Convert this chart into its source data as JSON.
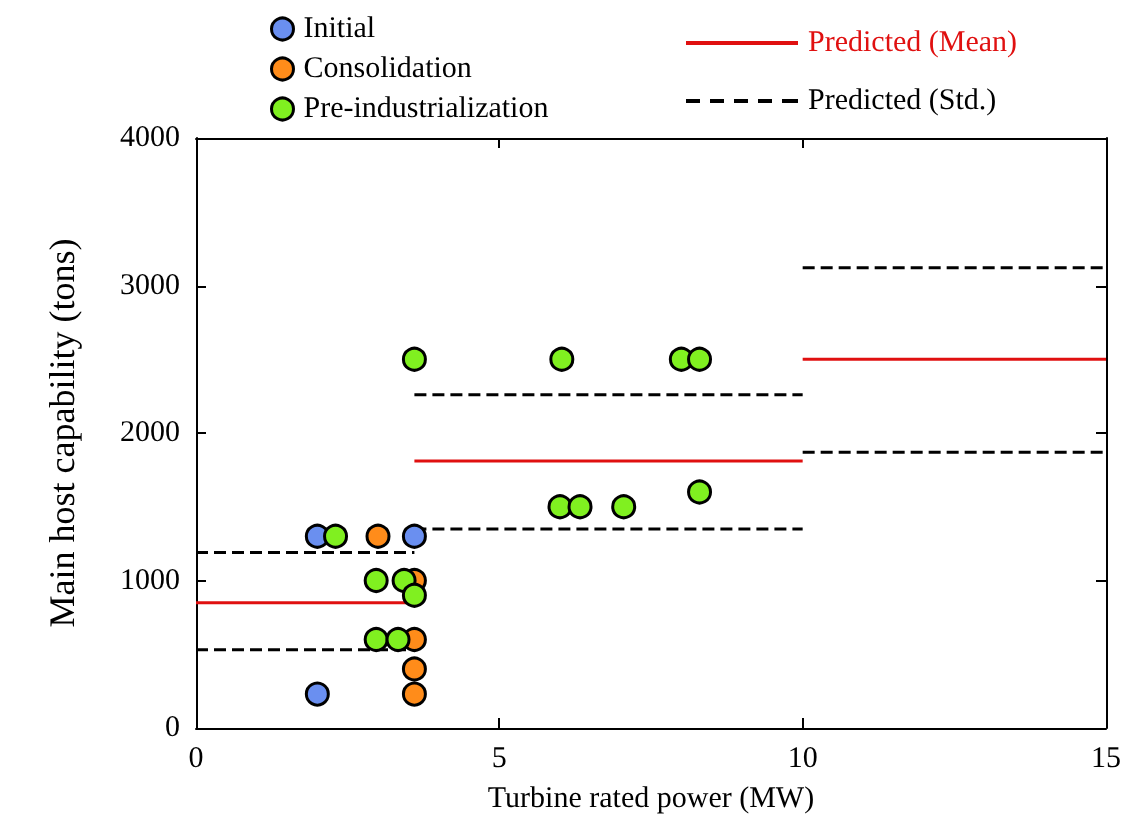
{
  "chart_data": {
    "type": "scatter",
    "xlabel": "Turbine rated power (MW)",
    "ylabel": "Main host capability (tons)",
    "xlim": [
      0,
      15
    ],
    "xticks": [
      0,
      5,
      10,
      15
    ],
    "ylim": [
      0,
      4000
    ],
    "yticks": [
      0,
      1000,
      2000,
      3000,
      4000
    ],
    "grid": false,
    "legend": "top",
    "marker": "circle",
    "series": [
      {
        "name": "Initial",
        "color": "#6a8ff0",
        "x": [
          2,
          2,
          3.6
        ],
        "values": [
          1300,
          230,
          1300
        ]
      },
      {
        "name": "Consolidation",
        "color": "#ff8c1a",
        "x": [
          3,
          3.6,
          3.6,
          3.6,
          3.6
        ],
        "values": [
          1300,
          1000,
          600,
          400,
          230
        ]
      },
      {
        "name": "Pre-industrialization",
        "color": "#80f020",
        "x": [
          2.3,
          2.97,
          3.43,
          2.97,
          3.33,
          3.6,
          3.6,
          6.03,
          8.0,
          8.3,
          6.0,
          6.33,
          7.05,
          8.3
        ],
        "values": [
          1300,
          1000,
          1000,
          600,
          600,
          900,
          2500,
          2500,
          2500,
          2500,
          1500,
          1500,
          1500,
          1600
        ]
      },
      {
        "name": "Predicted (Mean)",
        "type": "line",
        "color": "#e01010",
        "line_style": "solid",
        "marker": "none",
        "x": [
          0,
          3.6
        ],
        "values": [
          850,
          850
        ]
      },
      {
        "type": "line",
        "color": "#e01010",
        "line_style": "solid",
        "marker": "none",
        "x": [
          3.6,
          10
        ],
        "values": [
          1810,
          1810
        ]
      },
      {
        "type": "line",
        "color": "#e01010",
        "line_style": "solid",
        "marker": "none",
        "x": [
          10,
          15
        ],
        "values": [
          2500,
          2500
        ]
      },
      {
        "name": "Predicted (Std.)",
        "type": "line",
        "color": "#000000",
        "line_style": "dashed",
        "marker": "none",
        "x": [
          0,
          3.6
        ],
        "values": [
          1190,
          1190
        ]
      },
      {
        "type": "line",
        "color": "#000000",
        "line_style": "dashed",
        "marker": "none",
        "x": [
          0,
          3.6
        ],
        "values": [
          530,
          530
        ]
      },
      {
        "type": "line",
        "color": "#000000",
        "line_style": "dashed",
        "marker": "none",
        "x": [
          3.6,
          10
        ],
        "values": [
          2260,
          2260
        ]
      },
      {
        "type": "line",
        "color": "#000000",
        "line_style": "dashed",
        "marker": "none",
        "x": [
          3.6,
          10
        ],
        "values": [
          1350,
          1350
        ]
      },
      {
        "type": "line",
        "color": "#000000",
        "line_style": "dashed",
        "marker": "none",
        "x": [
          10,
          15
        ],
        "values": [
          3120,
          3120
        ]
      },
      {
        "type": "line",
        "color": "#000000",
        "line_style": "dashed",
        "marker": "none",
        "x": [
          10,
          15
        ],
        "values": [
          1870,
          1870
        ]
      }
    ]
  }
}
